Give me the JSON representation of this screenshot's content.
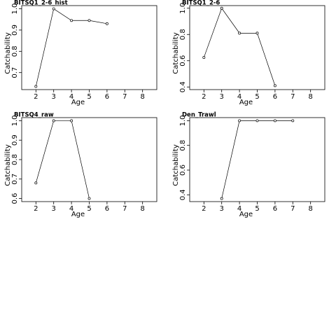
{
  "chart_data": [
    {
      "type": "line",
      "title": "BITSQ1_2-6_hist",
      "x_label": "Age",
      "y_label": "Catchability",
      "color": "#000000",
      "x": [
        2,
        3,
        4,
        5,
        6
      ],
      "values": [
        0.635,
        1.0,
        0.945,
        0.945,
        0.93
      ],
      "xlim": [
        1.2,
        8.8
      ],
      "ylim": [
        0.62,
        1.015
      ],
      "xticks": [
        2,
        3,
        4,
        5,
        6,
        7,
        8
      ],
      "yticks": [
        0.7,
        0.8,
        0.9,
        {
          "value": 1,
          "label": "1.0"
        }
      ]
    },
    {
      "type": "line",
      "title": "BITSQ1_2-6",
      "x_label": "Age",
      "y_label": "Catchability",
      "color": "#000000",
      "x": [
        2,
        3,
        4,
        5,
        6
      ],
      "values": [
        0.625,
        1.0,
        0.81,
        0.81,
        0.41
      ],
      "xlim": [
        1.2,
        8.8
      ],
      "ylim": [
        0.38,
        1.02
      ],
      "xticks": [
        2,
        3,
        4,
        5,
        6,
        7,
        8
      ],
      "yticks": [
        0.4,
        0.6,
        0.8,
        {
          "value": 1,
          "label": "1.0"
        }
      ]
    },
    {
      "type": "line",
      "title": "BITSQ4_raw",
      "x_label": "Age",
      "y_label": "Catchability",
      "color": "#000000",
      "x": [
        2,
        3,
        4,
        5
      ],
      "values": [
        0.68,
        1.0,
        1.0,
        0.6
      ],
      "xlim": [
        1.2,
        8.8
      ],
      "ylim": [
        0.584,
        1.016
      ],
      "xticks": [
        2,
        3,
        4,
        5,
        6,
        7,
        8
      ],
      "yticks": [
        0.6,
        0.7,
        0.8,
        0.9,
        {
          "value": 1,
          "label": "1.0"
        }
      ]
    },
    {
      "type": "line",
      "title": "Den_Trawl",
      "x_label": "Age",
      "y_label": "Catchability",
      "color": "#000000",
      "x": [
        3,
        4,
        5,
        6,
        7
      ],
      "values": [
        0.37,
        1.0,
        1.0,
        1.0,
        1.0
      ],
      "xlim": [
        1.2,
        8.8
      ],
      "ylim": [
        0.345,
        1.025
      ],
      "xticks": [
        2,
        3,
        4,
        5,
        6,
        7,
        8
      ],
      "yticks": [
        0.4,
        0.6,
        0.8,
        {
          "value": 1,
          "label": "1.0"
        }
      ]
    }
  ]
}
